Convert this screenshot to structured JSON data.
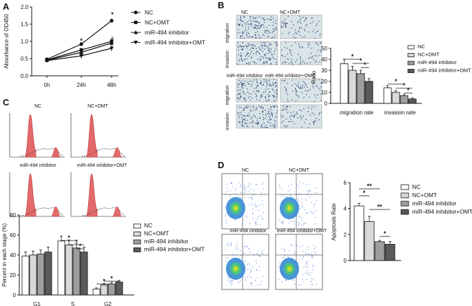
{
  "panels": {
    "a": "A",
    "b": "B",
    "c": "C",
    "d": "D"
  },
  "group_labels": [
    "NC",
    "NC+OMT",
    "miR-494 inhibitor",
    "miR-494 inhibitor+OMT"
  ],
  "colors": {
    "nc": "#ffffff",
    "nc_omt": "#d9d9d9",
    "inhibitor": "#9e9e9e",
    "inhibitor_omt": "#5a5a5a",
    "micro_bg": "#d8e4e8",
    "micro_cell": "#3a4a7a",
    "hist_fill": "#e36a6a"
  },
  "panel_b_images": {
    "col_labels_top": [
      "NC",
      "NC+OMT"
    ],
    "col_labels_bottom": [
      "miR-494 inhibitor",
      "miR-494 inhibitor+OMT"
    ],
    "row_labels": [
      "migration",
      "invasion",
      "migration",
      "invasion"
    ]
  },
  "panel_c_images": {
    "labels": [
      "NC",
      "NC+OMT",
      "miR-494 inhibitor",
      "miR-494 inhibitor+OMT"
    ]
  },
  "panel_d_images": {
    "labels": [
      "NC",
      "NC+OMT",
      "miR-494 inhibitor",
      "miR-494 inhibitor+OMT"
    ]
  },
  "chart_data": [
    {
      "id": "A",
      "type": "line",
      "ylabel": "Absorbance of OD450",
      "xlabel": "",
      "categories": [
        "0h",
        "24h",
        "48h"
      ],
      "ylim": [
        0.0,
        2.0
      ],
      "yticks": [
        "0.0",
        "0.5",
        "1.0",
        "1.5",
        "2.0"
      ],
      "series": [
        {
          "name": "NC",
          "marker": "circle",
          "values": [
            0.48,
            0.92,
            1.6
          ],
          "err": [
            0.03,
            0.05,
            0.06
          ]
        },
        {
          "name": "NC+OMT",
          "marker": "square",
          "values": [
            0.46,
            0.75,
            1.0
          ],
          "err": [
            0.03,
            0.06,
            0.07
          ]
        },
        {
          "name": "miR-494 inhibitor",
          "marker": "triangle-up",
          "values": [
            0.45,
            0.68,
            0.95
          ],
          "err": [
            0.03,
            0.07,
            0.08
          ]
        },
        {
          "name": "miR-494 inhibitor+OMT",
          "marker": "triangle-down",
          "values": [
            0.44,
            0.58,
            0.8
          ],
          "err": [
            0.03,
            0.08,
            0.09
          ]
        }
      ],
      "annotations": [
        "*",
        "*",
        "#"
      ]
    },
    {
      "id": "B",
      "type": "bar",
      "ylabel": "Ratio",
      "categories": [
        "migration rate",
        "invasion rate"
      ],
      "ylim": [
        0,
        50
      ],
      "yticks": [
        "0",
        "10",
        "20",
        "30",
        "40",
        "50"
      ],
      "series": [
        {
          "name": "NC",
          "values": [
            36,
            14
          ],
          "err": [
            4,
            2
          ]
        },
        {
          "name": "NC+OMT",
          "values": [
            30,
            10
          ],
          "err": [
            3.5,
            1.5
          ]
        },
        {
          "name": "miR-494 inhibitor",
          "values": [
            27,
            7
          ],
          "err": [
            3,
            1.2
          ]
        },
        {
          "name": "miR-494 inhibitor+OMT",
          "values": [
            20,
            4
          ],
          "err": [
            2.5,
            1
          ]
        }
      ],
      "annotations": [
        "*",
        "*",
        "*",
        "*",
        "*",
        "*"
      ]
    },
    {
      "id": "C",
      "type": "bar",
      "ylabel": "Percent in each stage (%)",
      "categories": [
        "G1",
        "S",
        "G2"
      ],
      "ylim": [
        0,
        80
      ],
      "yticks": [
        "0",
        "20",
        "40",
        "60",
        "80"
      ],
      "series": [
        {
          "name": "NC",
          "values": [
            39,
            54,
            6
          ],
          "err": [
            4,
            5,
            1
          ]
        },
        {
          "name": "NC+OMT",
          "values": [
            40,
            50,
            10
          ],
          "err": [
            4,
            5,
            1.5
          ]
        },
        {
          "name": "miR-494 inhibitor",
          "values": [
            41,
            47,
            11
          ],
          "err": [
            4,
            5,
            1.5
          ]
        },
        {
          "name": "miR-494 inhibitor+OMT",
          "values": [
            43,
            43,
            13
          ],
          "err": [
            5,
            5,
            1.5
          ]
        }
      ],
      "annotations": [
        "*",
        "*",
        "*",
        "*",
        "*"
      ]
    },
    {
      "id": "D",
      "type": "bar",
      "ylabel": "Apoptosis Rate",
      "categories": [
        ""
      ],
      "ylim": [
        0,
        6
      ],
      "yticks": [
        "0",
        "2",
        "4",
        "6"
      ],
      "series": [
        {
          "name": "NC",
          "values": [
            4.2
          ],
          "err": [
            0.2
          ]
        },
        {
          "name": "NC+OMT",
          "values": [
            3.0
          ],
          "err": [
            0.4
          ]
        },
        {
          "name": "miR-494 inhibitor",
          "values": [
            1.45
          ],
          "err": [
            0.1
          ]
        },
        {
          "name": "miR-494 inhibitor+OMT",
          "values": [
            1.25
          ],
          "err": [
            0.2
          ]
        }
      ],
      "annotations": [
        "**",
        "*",
        "**",
        "*"
      ]
    }
  ]
}
